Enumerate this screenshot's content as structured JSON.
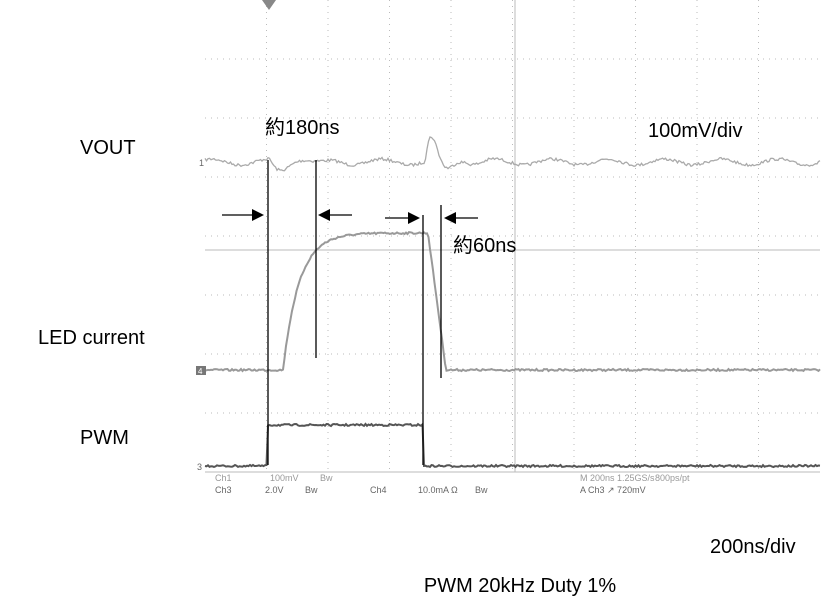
{
  "labels": {
    "vout": "VOUT",
    "led_current": "LED current",
    "pwm": "PWM"
  },
  "annotations": {
    "rise": "約180ns",
    "vscale": "100mV/div",
    "fall": "約60ns",
    "hscale": "200ns/div"
  },
  "markers": {
    "ch1": "1",
    "ch4": "4",
    "ch3": "3"
  },
  "status_bar": {
    "row1": [
      "Ch1",
      "100mV",
      "Bw",
      "M 200ns 1.25GS/s",
      "800ps/pt"
    ],
    "row2": [
      "Ch3",
      "2.0V",
      "Bw",
      "Ch4",
      "10.0mA Ω",
      "Bw",
      "A Ch3 ↗ 720mV"
    ]
  },
  "caption": "PWM 20kHz Duty 1%"
}
